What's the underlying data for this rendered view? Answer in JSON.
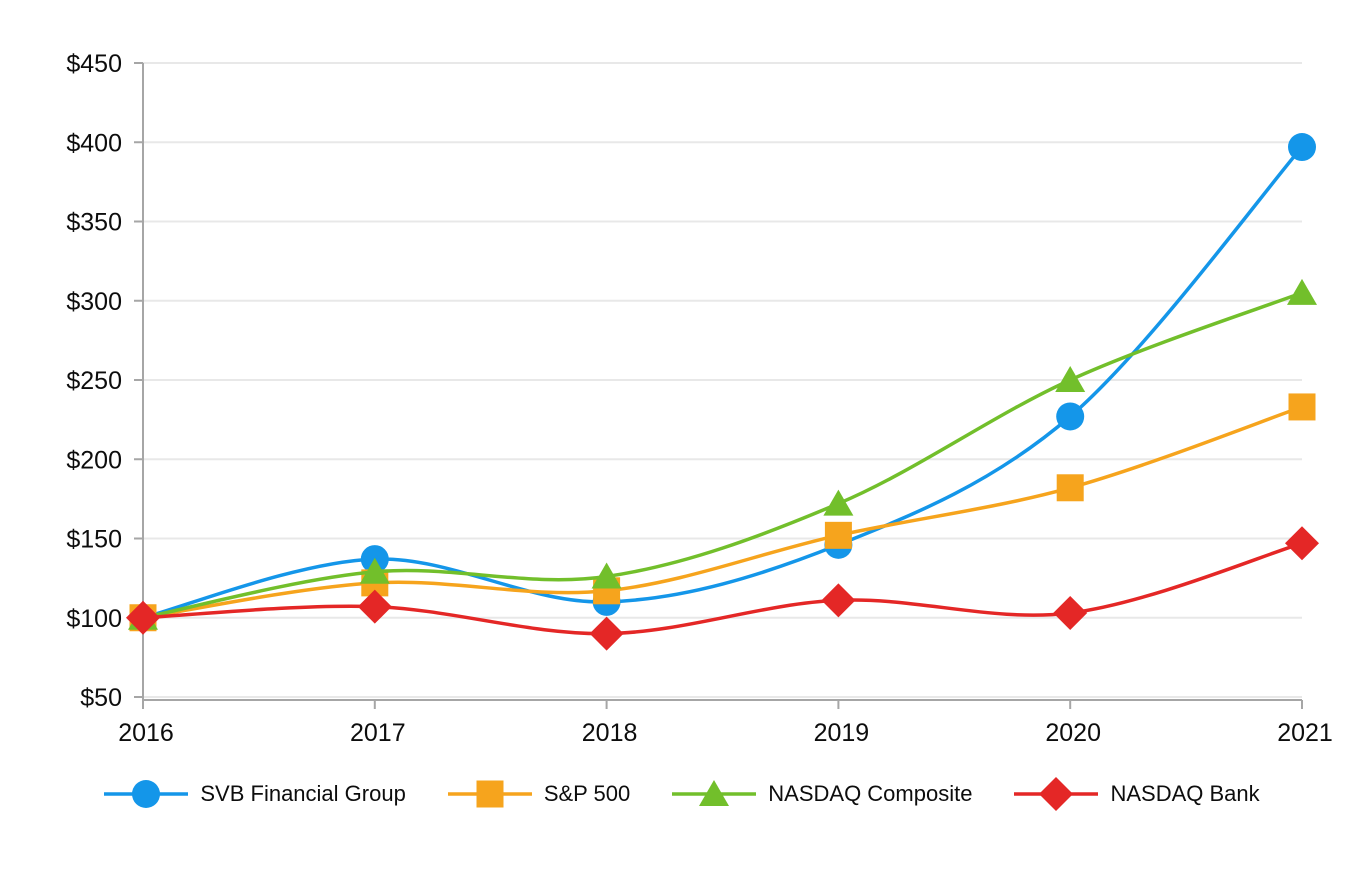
{
  "chart_data": {
    "type": "line",
    "title": "",
    "x_labels": [
      "2016",
      "2017",
      "2018",
      "2019",
      "2020",
      "2021"
    ],
    "y_tick_labels": [
      "$50",
      "$100",
      "$150",
      "$200",
      "$250",
      "$300",
      "$350",
      "$400",
      "$450"
    ],
    "y_tick_values": [
      50,
      100,
      150,
      200,
      250,
      300,
      350,
      400,
      450
    ],
    "ylim": [
      50,
      450
    ],
    "ytick_step": 50,
    "ytick_prefix": "$",
    "grid": true,
    "line_style": "smooth",
    "legend_position": "bottom",
    "series": [
      {
        "name": "SVB Financial Group",
        "marker": "circle",
        "color": "#1496e9",
        "values": [
          100,
          137,
          110,
          146,
          227,
          397
        ]
      },
      {
        "name": "S&P 500",
        "marker": "square",
        "color": "#f6a41d",
        "values": [
          100,
          122,
          117,
          152,
          182,
          233
        ]
      },
      {
        "name": "NASDAQ Composite",
        "marker": "triangle",
        "color": "#72bf2b",
        "values": [
          100,
          129,
          126,
          172,
          250,
          305
        ]
      },
      {
        "name": "NASDAQ Bank",
        "marker": "diamond",
        "color": "#e42726",
        "values": [
          100,
          107,
          90,
          111,
          103,
          147
        ]
      }
    ],
    "colors": {
      "gridline": "#e8e8e8",
      "axis": "#a6a6a6",
      "label_text": "#0d0d0d"
    }
  }
}
